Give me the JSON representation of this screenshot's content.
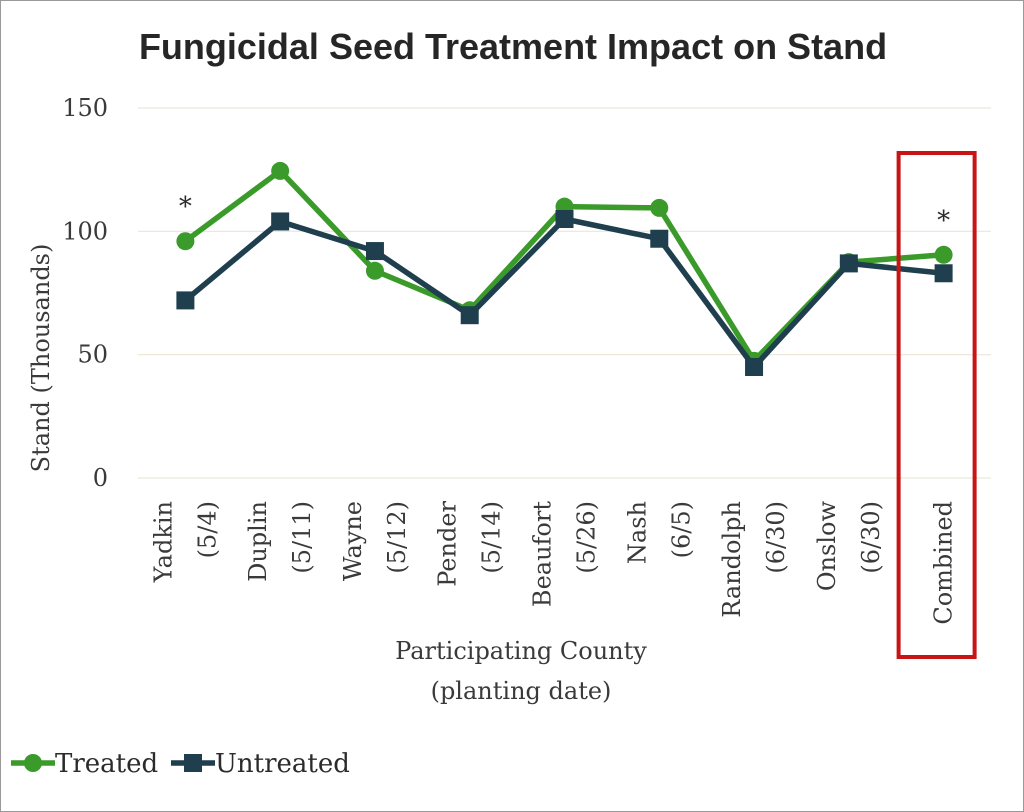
{
  "chart_data": {
    "type": "line",
    "title": "Fungicidal Seed Treatment Impact on Stand",
    "xlabel": [
      "Participating County",
      "(planting date)"
    ],
    "ylabel": "Stand (Thousands)",
    "ylim": [
      0,
      150
    ],
    "yticks": [
      "0",
      "50",
      "100",
      "150"
    ],
    "grid": "horizontal",
    "legend": "bottom-left",
    "categories": [
      [
        "Yadkin",
        "(5/4)"
      ],
      [
        "Duplin",
        "(5/11)"
      ],
      [
        "Wayne",
        "(5/12)"
      ],
      [
        "Pender",
        "(5/14)"
      ],
      [
        "Beaufort",
        "(5/26)"
      ],
      [
        "Nash",
        "(6/5)"
      ],
      [
        "Randolph",
        "(6/30)"
      ],
      [
        "Onslow",
        "(6/30)"
      ],
      [
        "Combined"
      ]
    ],
    "series": [
      {
        "name": "Treated",
        "color": "#3a9a2a",
        "marker": "circle",
        "values": [
          96,
          124.5,
          84,
          68,
          110,
          109.5,
          47.5,
          87.5,
          90.5
        ]
      },
      {
        "name": "Untreated",
        "color": "#1f3f4f",
        "marker": "square",
        "values": [
          72,
          104,
          92,
          66,
          105,
          97,
          45,
          87,
          83
        ]
      }
    ],
    "annotations": [
      {
        "text": "*",
        "category": "Yadkin"
      },
      {
        "text": "*",
        "category": "Combined"
      }
    ],
    "highlight": {
      "category": "Combined",
      "color": "#c81414"
    }
  }
}
